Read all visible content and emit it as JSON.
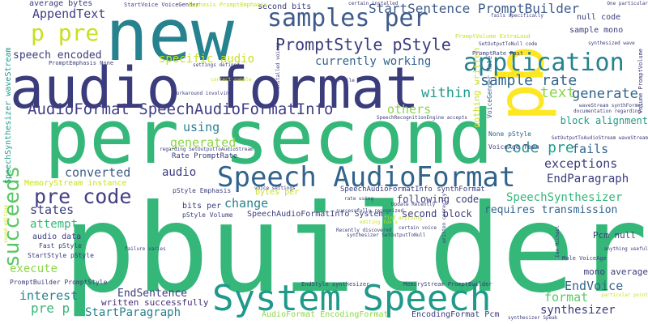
{
  "palette": {
    "navy": "#3b3c7c",
    "indigo": "#433e85",
    "blue": "#3e5b8b",
    "steel": "#32638d",
    "teal": "#26828e",
    "sea": "#1f9a8a",
    "green": "#35b779",
    "bright_green": "#59c864",
    "lime": "#8bd646",
    "yellow": "#c8e020",
    "gold": "#fde725",
    "purple": "#472d7b",
    "dark": "#440154"
  },
  "words": [
    {
      "text": "pbuilder",
      "color": "green"
    },
    {
      "text": "per second",
      "color": "green"
    },
    {
      "text": "audio format",
      "color": "navy"
    },
    {
      "text": "new",
      "color": "teal"
    },
    {
      "text": "pb",
      "color": "gold"
    },
    {
      "text": "System Speech",
      "color": "sea"
    },
    {
      "text": "Speech AudioFormat",
      "color": "steel"
    },
    {
      "text": "samples per",
      "color": "blue"
    },
    {
      "text": "application",
      "color": "teal"
    },
    {
      "text": "pre code",
      "color": "indigo"
    },
    {
      "text": "AudioFormat SpeechAudioFormatInfo",
      "color": "indigo"
    },
    {
      "text": "succeeds",
      "color": "bright_green"
    },
    {
      "text": "p pre",
      "color": "yellow"
    },
    {
      "text": "PromptStyle pStyle",
      "color": "navy"
    },
    {
      "text": "StartSentence PromptBuilder",
      "color": "blue"
    },
    {
      "text": "sample rate",
      "color": "steel"
    },
    {
      "text": "AppendText",
      "color": "indigo"
    },
    {
      "text": "code pre",
      "color": "sea"
    },
    {
      "text": "generate",
      "color": "steel"
    },
    {
      "text": "text",
      "color": "lime"
    },
    {
      "text": "speech encoded",
      "color": "navy"
    },
    {
      "text": "currently working",
      "color": "steel"
    },
    {
      "text": "specific audio",
      "color": "yellow"
    },
    {
      "text": "within",
      "color": "sea"
    },
    {
      "text": "others",
      "color": "lime"
    },
    {
      "text": "using",
      "color": "teal"
    },
    {
      "text": "generated",
      "color": "lime"
    },
    {
      "text": "fails",
      "color": "steel"
    },
    {
      "text": "block alignment",
      "color": "sea"
    },
    {
      "text": "converted",
      "color": "blue"
    },
    {
      "text": "audio",
      "color": "navy"
    },
    {
      "text": "EndParagraph",
      "color": "navy"
    },
    {
      "text": "exceptions",
      "color": "navy"
    },
    {
      "text": "SpeechSynthesizer",
      "color": "green"
    },
    {
      "text": "states",
      "color": "navy"
    },
    {
      "text": "change",
      "color": "teal"
    },
    {
      "text": "attempt",
      "color": "green"
    },
    {
      "text": "following code",
      "color": "navy"
    },
    {
      "text": "requires transmission",
      "color": "steel"
    },
    {
      "text": "second block",
      "color": "navy"
    },
    {
      "text": "audio data",
      "color": "navy"
    },
    {
      "text": "execute",
      "color": "lime"
    },
    {
      "text": "interest",
      "color": "teal"
    },
    {
      "text": "pre p",
      "color": "green"
    },
    {
      "text": "EndSentence",
      "color": "navy"
    },
    {
      "text": "StartParagraph",
      "color": "teal"
    },
    {
      "text": "written successfully",
      "color": "purple"
    },
    {
      "text": "EndVoice",
      "color": "steel"
    },
    {
      "text": "format",
      "color": "bright_green"
    },
    {
      "text": "synthesizer",
      "color": "navy"
    },
    {
      "text": "mono average",
      "color": "navy"
    },
    {
      "text": "Pcm null",
      "color": "navy"
    },
    {
      "text": "AudioFormat EncodingFormat",
      "color": "lime"
    },
    {
      "text": "EncodingFormat Pcm",
      "color": "navy"
    },
    {
      "text": "second bits",
      "color": "navy"
    },
    {
      "text": "average bytes",
      "color": "navy"
    },
    {
      "text": "null code",
      "color": "navy"
    },
    {
      "text": "sample mono",
      "color": "navy"
    },
    {
      "text": "SpeechSynthesizer waveStream",
      "color": "sea"
    },
    {
      "text": "MemoryStream instance",
      "color": "yellow"
    },
    {
      "text": "SpeechAudioFormatInfo System",
      "color": "navy"
    },
    {
      "text": "SpeechAudioFormatInfo synthFormat",
      "color": "navy"
    },
    {
      "text": "bits per",
      "color": "navy"
    },
    {
      "text": "bytes per",
      "color": "yellow"
    },
    {
      "text": "Rate PromptRate",
      "color": "navy"
    },
    {
      "text": "pStyle Emphasis",
      "color": "navy"
    },
    {
      "text": "pStyle Volume",
      "color": "navy"
    },
    {
      "text": "Fast pStyle",
      "color": "navy"
    },
    {
      "text": "StartStyle pStyle",
      "color": "navy"
    },
    {
      "text": "PromptBuilder PromptStyle",
      "color": "navy"
    },
    {
      "text": "EndStyle synthesizer",
      "color": "navy"
    },
    {
      "text": "MemoryStream PromptBuilder",
      "color": "navy"
    },
    {
      "text": "nothing written",
      "color": "yellow"
    },
    {
      "text": "VoiceGender Male",
      "color": "steel"
    },
    {
      "text": "None pStyle",
      "color": "steel"
    },
    {
      "text": "VoiceAge Teen",
      "color": "navy"
    },
    {
      "text": "Male VoiceAge",
      "color": "navy"
    },
    {
      "text": "StartVoice VoiceGender",
      "color": "navy"
    },
    {
      "text": "Emphasis PromptEmphasis",
      "color": "yellow"
    },
    {
      "text": "PromptEmphasis None",
      "color": "navy"
    },
    {
      "text": "PromptVolume ExtraLoud",
      "color": "yellow"
    },
    {
      "text": "PromptRate Fast",
      "color": "navy"
    },
    {
      "text": "certain installed",
      "color": "navy"
    },
    {
      "text": "fails specifically",
      "color": "navy"
    },
    {
      "text": "SetOutputToNull code",
      "color": "navy"
    },
    {
      "text": "synthesized wave",
      "color": "navy"
    },
    {
      "text": "waveStream synthFormat",
      "color": "navy"
    },
    {
      "text": "documentation regarding",
      "color": "navy"
    },
    {
      "text": "SetOutputToAudioStream waveStream",
      "color": "navy"
    },
    {
      "text": "SpeechRecognitionEngine accepts",
      "color": "navy"
    },
    {
      "text": "Volume PromptVolume",
      "color": "navy"
    },
    {
      "text": "One particular",
      "color": "navy"
    },
    {
      "text": "settings defined",
      "color": "navy"
    },
    {
      "text": "correct sample",
      "color": "yellow"
    },
    {
      "text": "workaround involving",
      "color": "navy"
    },
    {
      "text": "wav file",
      "color": "navy"
    },
    {
      "text": "installed voices",
      "color": "navy"
    },
    {
      "text": "regarding SetOutputToAudioStream",
      "color": "navy"
    },
    {
      "text": "voice settings",
      "color": "navy"
    },
    {
      "text": "rate using",
      "color": "navy"
    },
    {
      "text": "Update Recently",
      "color": "navy"
    },
    {
      "text": "find anything",
      "color": "yellow"
    },
    {
      "text": "certain voice",
      "color": "navy"
    },
    {
      "text": "Recently discovered",
      "color": "navy"
    },
    {
      "text": "editing tools",
      "color": "yellow"
    },
    {
      "text": "synthesizer SetOutputToNull",
      "color": "navy"
    },
    {
      "text": "successfully recognized",
      "color": "navy"
    },
    {
      "text": "failure varies",
      "color": "navy"
    },
    {
      "text": "sound editing",
      "color": "yellow"
    },
    {
      "text": "anything useful",
      "color": "navy"
    },
    {
      "text": "particular point",
      "color": "yellow"
    },
    {
      "text": "synthesizer Speak",
      "color": "navy"
    },
    {
      "text": "Ian Michael",
      "color": "navy"
    },
    {
      "text": "written correctly",
      "color": "navy"
    }
  ]
}
